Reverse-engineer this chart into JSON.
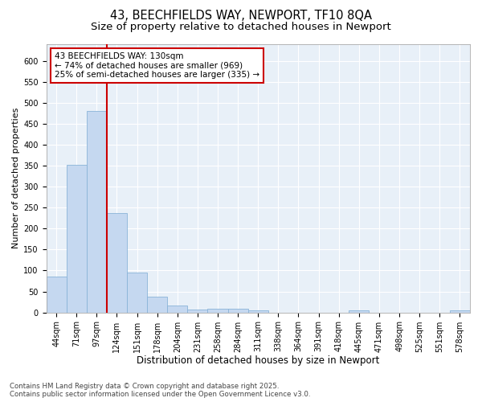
{
  "title_line1": "43, BEECHFIELDS WAY, NEWPORT, TF10 8QA",
  "title_line2": "Size of property relative to detached houses in Newport",
  "xlabel": "Distribution of detached houses by size in Newport",
  "ylabel": "Number of detached properties",
  "categories": [
    "44sqm",
    "71sqm",
    "97sqm",
    "124sqm",
    "151sqm",
    "178sqm",
    "204sqm",
    "231sqm",
    "258sqm",
    "284sqm",
    "311sqm",
    "338sqm",
    "364sqm",
    "391sqm",
    "418sqm",
    "445sqm",
    "471sqm",
    "498sqm",
    "525sqm",
    "551sqm",
    "578sqm"
  ],
  "values": [
    85,
    352,
    480,
    237,
    96,
    37,
    16,
    7,
    8,
    8,
    5,
    0,
    0,
    0,
    0,
    5,
    0,
    0,
    0,
    0,
    5
  ],
  "bar_color": "#c5d8f0",
  "bar_edgecolor": "#8ab4d8",
  "vline_x_index": 3,
  "vline_color": "#cc0000",
  "annotation_text": "43 BEECHFIELDS WAY: 130sqm\n← 74% of detached houses are smaller (969)\n25% of semi-detached houses are larger (335) →",
  "annotation_box_facecolor": "#ffffff",
  "annotation_box_edgecolor": "#cc0000",
  "ylim": [
    0,
    640
  ],
  "yticks": [
    0,
    50,
    100,
    150,
    200,
    250,
    300,
    350,
    400,
    450,
    500,
    550,
    600
  ],
  "figure_bg": "#ffffff",
  "plot_bg": "#e8f0f8",
  "grid_color": "#ffffff",
  "footer_text": "Contains HM Land Registry data © Crown copyright and database right 2025.\nContains public sector information licensed under the Open Government Licence v3.0.",
  "title_fontsize": 10.5,
  "subtitle_fontsize": 9.5,
  "tick_fontsize": 7,
  "xlabel_fontsize": 8.5,
  "ylabel_fontsize": 8,
  "annotation_fontsize": 7.5,
  "footer_fontsize": 6.2
}
